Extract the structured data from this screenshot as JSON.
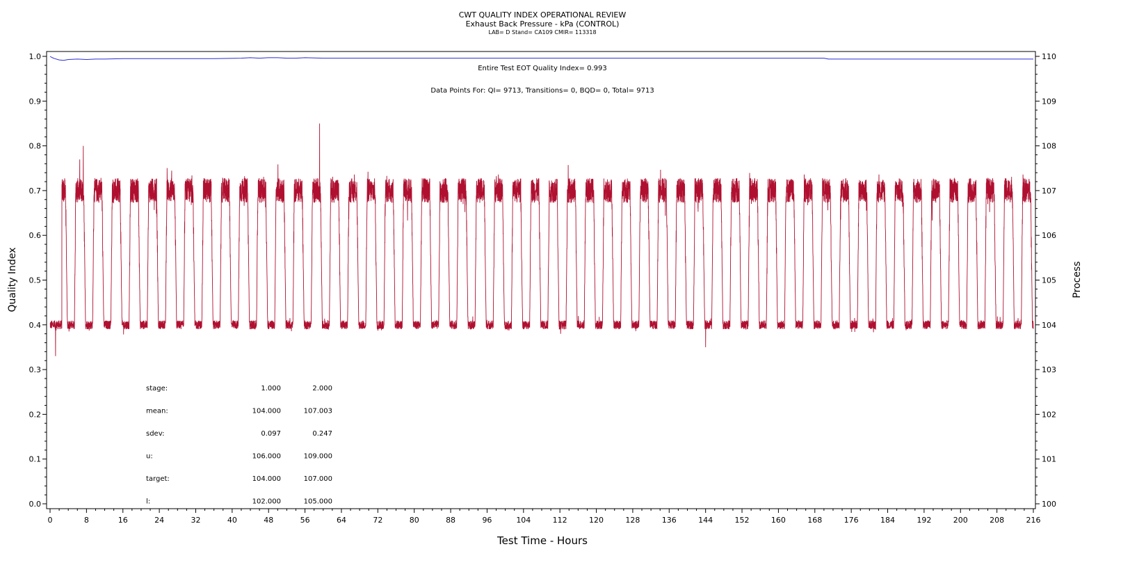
{
  "chart_data": {
    "type": "line",
    "title": "CWT QUALITY INDEX OPERATIONAL REVIEW",
    "subtitle": "Exhaust Back Pressure - kPa (CONTROL)",
    "subtitle2": "LAB= D Stand= CA109 CMIR= 113318",
    "xlabel": "Test Time - Hours",
    "ylabel_left": "Quality Index",
    "ylabel_right": "Process",
    "xlim": [
      0,
      216
    ],
    "ylim_left": [
      0.0,
      1.0
    ],
    "ylim_right": [
      100,
      110
    ],
    "x_ticks": [
      "0",
      "8",
      "16",
      "24",
      "32",
      "40",
      "48",
      "56",
      "64",
      "72",
      "80",
      "88",
      "96",
      "104",
      "112",
      "120",
      "128",
      "136",
      "144",
      "152",
      "160",
      "168",
      "176",
      "184",
      "192",
      "200",
      "208",
      "216"
    ],
    "y_ticks_left": [
      "0.0",
      "0.1",
      "0.2",
      "0.3",
      "0.4",
      "0.5",
      "0.6",
      "0.7",
      "0.8",
      "0.9",
      "1.0"
    ],
    "y_ticks_right": [
      "100",
      "101",
      "102",
      "103",
      "104",
      "105",
      "106",
      "107",
      "108",
      "109",
      "110"
    ],
    "annotations": {
      "eot": "Entire Test EOT Quality Index=   0.993",
      "points": "Data Points For: QI=  9713, Transitions=     0, BQD=     0, Total=  9713"
    },
    "stats_table": [
      {
        "label": "stage:",
        "v1": "1.000",
        "v2": "2.000"
      },
      {
        "label": "mean:",
        "v1": "104.000",
        "v2": "107.003"
      },
      {
        "label": "sdev:",
        "v1": "0.097",
        "v2": "0.247"
      },
      {
        "label": "u:",
        "v1": "106.000",
        "v2": "109.000"
      },
      {
        "label": "target:",
        "v1": "104.000",
        "v2": "107.000"
      },
      {
        "label": "l:",
        "v1": "102.000",
        "v2": "105.000"
      }
    ],
    "series": [
      {
        "axis": "left",
        "color": "#2b2bd6",
        "x": [
          0,
          0.5,
          1,
          2,
          3,
          4,
          6,
          8,
          10,
          12,
          16,
          20,
          28,
          36,
          42,
          44,
          46,
          48,
          50,
          52,
          54,
          56,
          60,
          80,
          100,
          120,
          140,
          160,
          170,
          171,
          180,
          200,
          216
        ],
        "values": [
          1.0,
          0.997,
          0.995,
          0.992,
          0.991,
          0.993,
          0.994,
          0.993,
          0.994,
          0.994,
          0.995,
          0.995,
          0.995,
          0.995,
          0.996,
          0.997,
          0.996,
          0.997,
          0.997,
          0.996,
          0.996,
          0.997,
          0.996,
          0.996,
          0.996,
          0.996,
          0.996,
          0.996,
          0.996,
          0.994,
          0.994,
          0.994,
          0.994
        ]
      },
      {
        "axis": "right",
        "color": "#b01030",
        "cycle_period_hours": 4,
        "stage1_mean": 104.0,
        "stage2_mean": 107.003,
        "peaks": [
          {
            "x": 7.3,
            "value": 108.0
          },
          {
            "x": 59.2,
            "value": 108.5
          },
          {
            "x": 144.0,
            "value": 103.5
          },
          {
            "x": 1.2,
            "value": 103.3
          }
        ]
      }
    ]
  },
  "colors": {
    "qi_line": "#2b2bd6",
    "process_line": "#b01030",
    "axis": "#000000"
  }
}
